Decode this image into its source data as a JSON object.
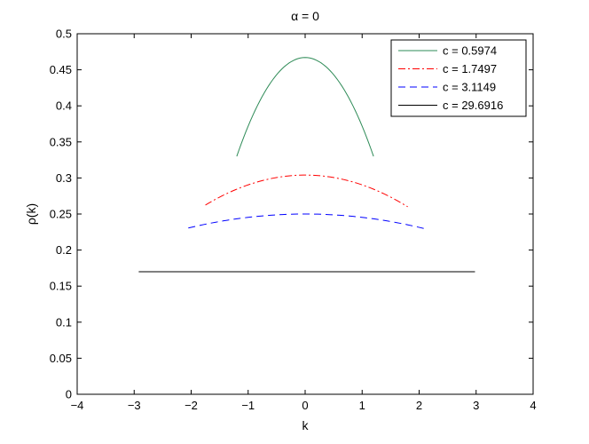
{
  "chart_data": {
    "type": "line",
    "title": "α = 0",
    "xlabel": "k",
    "ylabel": "ρ(k)",
    "xlim": [
      -4,
      4
    ],
    "ylim": [
      0,
      0.5
    ],
    "x_ticks": [
      "−4",
      "−3",
      "−2",
      "−1",
      "0",
      "1",
      "2",
      "3",
      "4"
    ],
    "y_ticks": [
      "0",
      "0.05",
      "0.1",
      "0.15",
      "0.2",
      "0.25",
      "0.3",
      "0.35",
      "0.4",
      "0.45",
      "0.5"
    ],
    "grid": false,
    "legend_position": "top-right",
    "series": [
      {
        "name": "c = 0.5974",
        "color": "#2e8b57",
        "style": "solid",
        "x_range": [
          -1.2,
          1.2
        ],
        "shape": "parabola",
        "peak": 0.467,
        "end": 0.33
      },
      {
        "name": "c = 1.7497",
        "color": "#ff0000",
        "style": "dashdot",
        "x_range": [
          -1.75,
          1.8
        ],
        "shape": "parabola",
        "peak": 0.304,
        "end": 0.26
      },
      {
        "name": "c = 3.1149",
        "color": "#0000ff",
        "style": "dashed",
        "x_range": [
          -2.05,
          2.08
        ],
        "shape": "parabola",
        "peak": 0.25,
        "end": 0.23
      },
      {
        "name": "c = 29.6916",
        "color": "#000000",
        "style": "solid",
        "x_range": [
          -2.92,
          2.98
        ],
        "shape": "parabola",
        "peak": 0.17,
        "end": 0.17
      }
    ]
  }
}
